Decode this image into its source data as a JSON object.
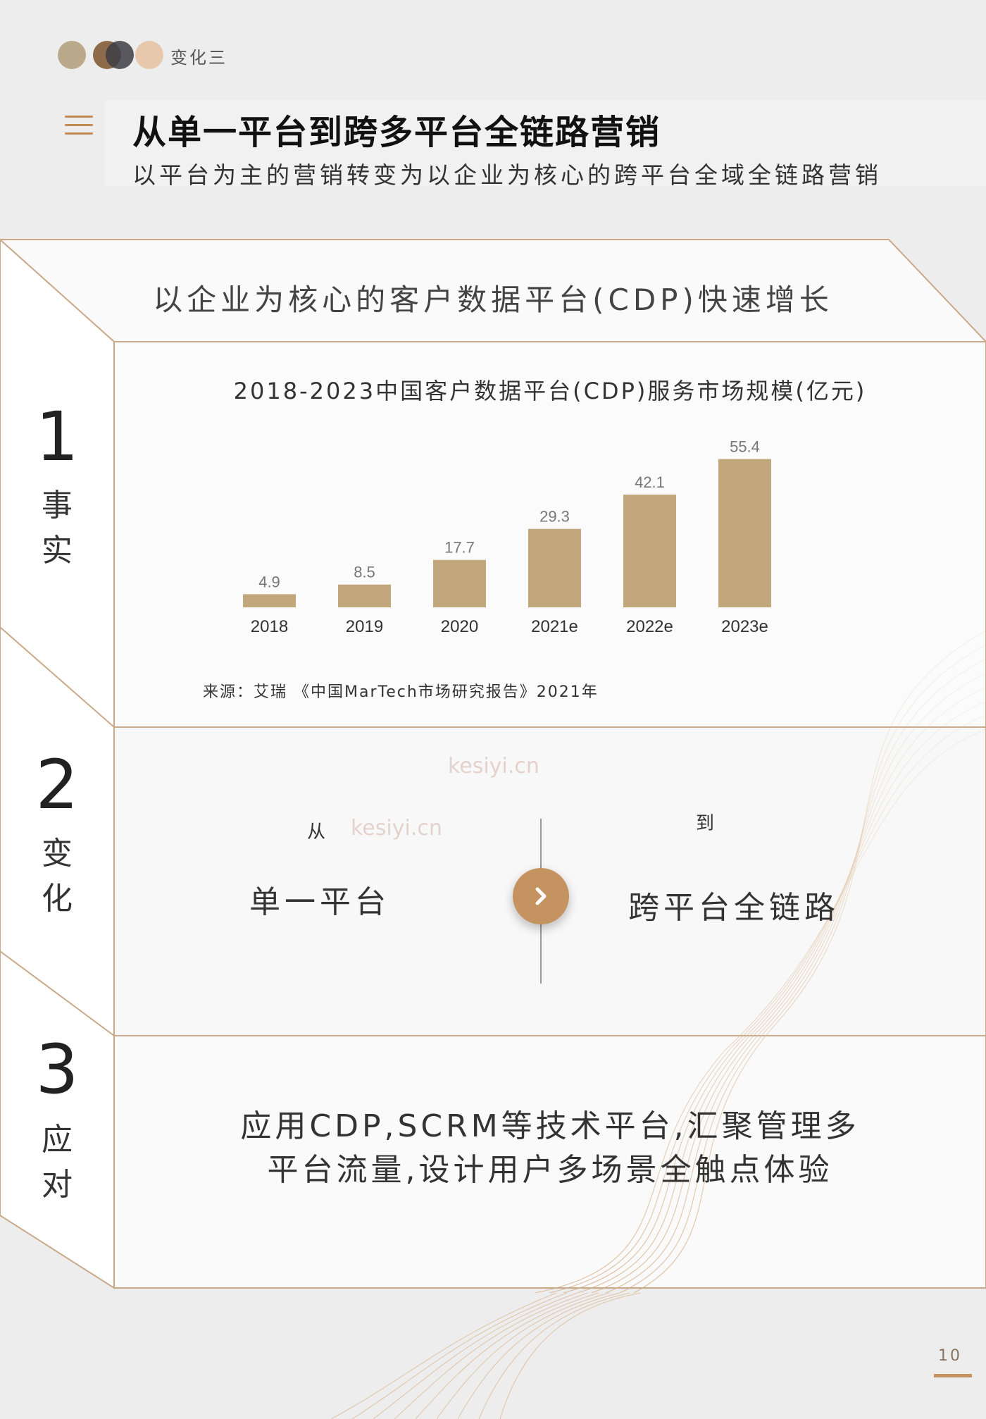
{
  "header": {
    "section_tag": "变化三",
    "title": "从单一平台到跨多平台全链路营销",
    "subtitle": "以平台为主的营销转变为以企业为核心的跨平台全域全链路营销"
  },
  "fact_heading": "以企业为核心的客户数据平台(CDP)快速增长",
  "side_labels": [
    {
      "num": "1",
      "chars": [
        "事",
        "实"
      ]
    },
    {
      "num": "2",
      "chars": [
        "变",
        "化"
      ]
    },
    {
      "num": "3",
      "chars": [
        "应",
        "对"
      ]
    }
  ],
  "chart_data": {
    "type": "bar",
    "title": "2018-2023中国客户数据平台(CDP)服务市场规模(亿元)",
    "categories": [
      "2018",
      "2019",
      "2020",
      "2021e",
      "2022e",
      "2023e"
    ],
    "values": [
      4.9,
      8.5,
      17.7,
      29.3,
      42.1,
      55.4
    ],
    "value_labels": [
      "4.9",
      "8.5",
      "17.7",
      "29.3",
      "42.1",
      "55.4"
    ],
    "bar_color": "#c2a77c",
    "xlabel": "",
    "ylabel": "",
    "ylim": [
      0,
      60
    ],
    "grid": false
  },
  "source": "来源：艾瑞 《中国MarTech市场研究报告》2021年",
  "change": {
    "from_label": "从",
    "from_text": "单一平台",
    "to_label": "到",
    "to_text": "跨平台全链路"
  },
  "action": {
    "line1": "应用CDP,SCRM等技术平台,汇聚管理多",
    "line2": "平台流量,设计用户多场景全触点体验"
  },
  "watermark": "kesiyi.cn",
  "page_number": "10",
  "colors": {
    "accent": "#c59360",
    "bar": "#c2a77c",
    "frame_line": "#c9a98a"
  }
}
